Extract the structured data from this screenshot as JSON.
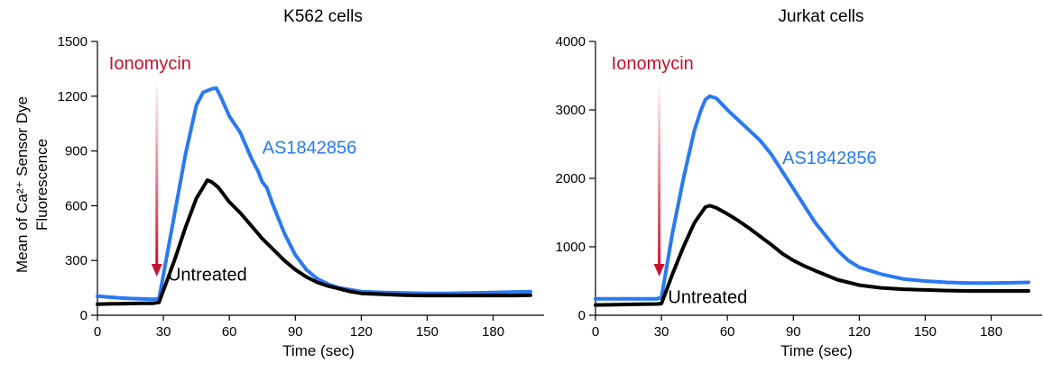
{
  "ylabel_line1": "Mean of Ca²⁺ Sensor Dye",
  "ylabel_line2": "Fluorescence",
  "colors": {
    "treated": "#2979f2",
    "untreated": "#000000",
    "arrow": "#c8102e"
  },
  "chart_data": [
    {
      "type": "line",
      "title": "K562 cells",
      "xlabel": "Time (sec)",
      "ylabel": "Mean of Ca²⁺ Sensor Dye Fluorescence",
      "xlim": [
        0,
        197
      ],
      "ylim": [
        0,
        1500
      ],
      "xticks": [
        0,
        30,
        60,
        90,
        120,
        150,
        180
      ],
      "yticks": [
        0,
        300,
        600,
        900,
        1200,
        1500
      ],
      "annotation": {
        "label": "Ionomycin",
        "x": 27
      },
      "grid": false,
      "series": [
        {
          "name": "AS1842856",
          "color": "#2979f2",
          "label_at": [
            75,
            920
          ],
          "x": [
            0,
            5,
            10,
            15,
            20,
            25,
            28,
            35,
            40,
            45,
            48,
            50,
            52,
            54,
            56,
            60,
            65,
            70,
            73,
            75,
            77,
            80,
            85,
            90,
            95,
            100,
            105,
            110,
            115,
            120,
            130,
            140,
            150,
            160,
            170,
            180,
            190,
            197
          ],
          "y": [
            105,
            100,
            95,
            92,
            90,
            88,
            90,
            550,
            880,
            1150,
            1220,
            1230,
            1240,
            1245,
            1200,
            1090,
            1000,
            860,
            790,
            730,
            700,
            600,
            450,
            330,
            250,
            200,
            170,
            150,
            140,
            130,
            125,
            122,
            120,
            120,
            122,
            125,
            128,
            130
          ]
        },
        {
          "name": "Untreated",
          "color": "#000000",
          "label_at": [
            32,
            225
          ],
          "x": [
            0,
            5,
            10,
            15,
            20,
            25,
            28,
            35,
            40,
            45,
            48,
            50,
            52,
            55,
            60,
            65,
            70,
            75,
            80,
            85,
            90,
            95,
            100,
            105,
            110,
            115,
            120,
            130,
            140,
            150,
            160,
            170,
            180,
            190,
            197
          ],
          "y": [
            60,
            62,
            63,
            64,
            65,
            65,
            70,
            300,
            480,
            640,
            700,
            740,
            730,
            700,
            620,
            560,
            490,
            420,
            360,
            300,
            250,
            210,
            180,
            160,
            145,
            130,
            120,
            115,
            110,
            108,
            108,
            108,
            108,
            108,
            110
          ]
        }
      ]
    },
    {
      "type": "line",
      "title": "Jurkat cells",
      "xlabel": "Time (sec)",
      "ylabel": "",
      "xlim": [
        0,
        197
      ],
      "ylim": [
        0,
        4000
      ],
      "xticks": [
        0,
        30,
        60,
        90,
        120,
        150,
        180
      ],
      "yticks": [
        0,
        1000,
        2000,
        3000,
        4000
      ],
      "annotation": {
        "label": "Ionomycin",
        "x": 29
      },
      "grid": false,
      "series": [
        {
          "name": "AS1842856",
          "color": "#2979f2",
          "label_at": [
            85,
            2300
          ],
          "x": [
            0,
            10,
            20,
            28,
            30,
            35,
            40,
            45,
            48,
            50,
            52,
            55,
            60,
            65,
            70,
            75,
            80,
            85,
            90,
            95,
            100,
            105,
            110,
            115,
            120,
            130,
            140,
            150,
            160,
            170,
            180,
            190,
            197
          ],
          "y": [
            240,
            240,
            240,
            240,
            260,
            1200,
            2000,
            2700,
            3000,
            3150,
            3200,
            3170,
            3000,
            2850,
            2700,
            2550,
            2350,
            2100,
            1850,
            1600,
            1350,
            1150,
            950,
            800,
            700,
            600,
            530,
            500,
            480,
            470,
            470,
            475,
            480
          ]
        },
        {
          "name": "Untreated",
          "color": "#000000",
          "label_at": [
            33,
            270
          ],
          "x": [
            0,
            10,
            20,
            28,
            30,
            35,
            40,
            45,
            50,
            52,
            55,
            60,
            65,
            70,
            75,
            80,
            85,
            90,
            95,
            100,
            110,
            120,
            130,
            140,
            150,
            160,
            170,
            180,
            190,
            197
          ],
          "y": [
            150,
            155,
            160,
            165,
            170,
            600,
            1000,
            1350,
            1580,
            1600,
            1570,
            1480,
            1380,
            1270,
            1150,
            1030,
            900,
            800,
            720,
            650,
            520,
            440,
            400,
            380,
            370,
            360,
            355,
            355,
            355,
            355
          ]
        }
      ]
    }
  ]
}
